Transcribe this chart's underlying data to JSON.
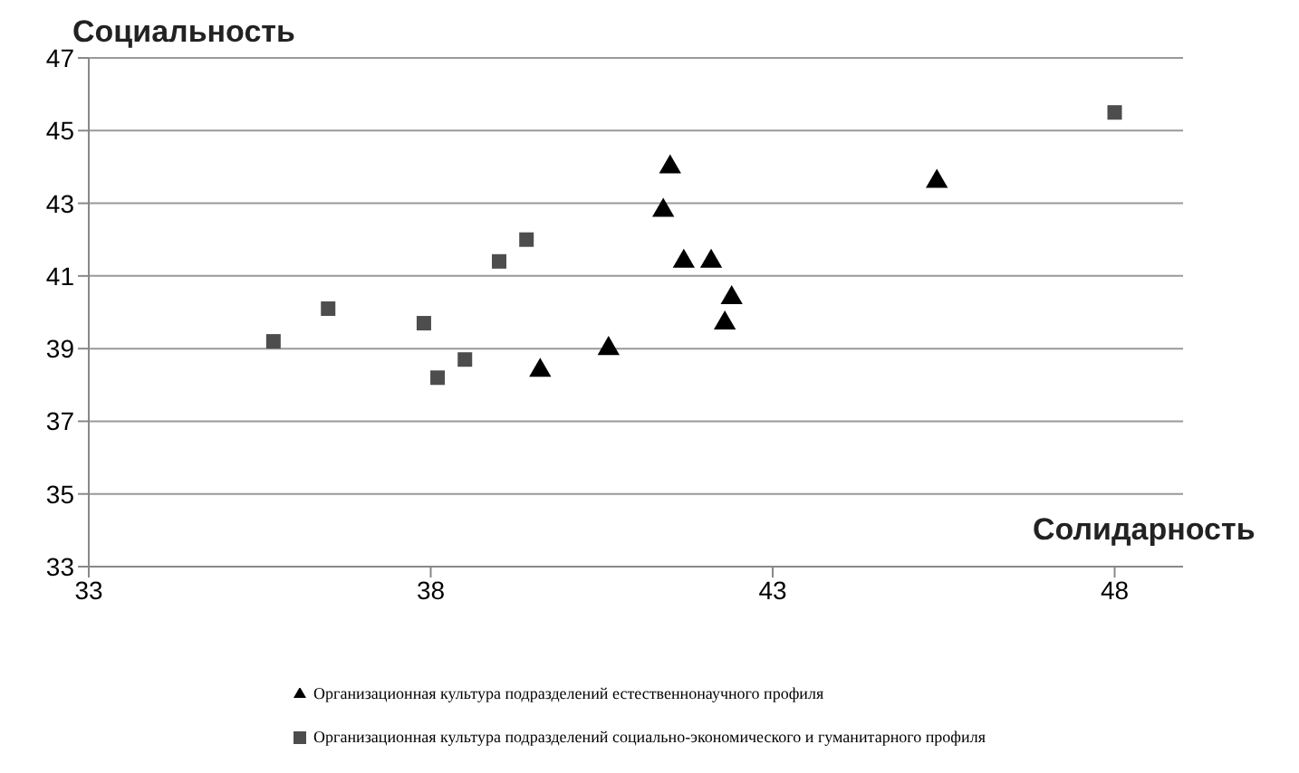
{
  "chart_data": {
    "type": "scatter",
    "xlabel": "Солидарность",
    "ylabel": "Социальность",
    "xlim": [
      33,
      49
    ],
    "xticks": [
      33,
      38,
      43,
      48
    ],
    "ylim": [
      33,
      47
    ],
    "yticks": [
      33,
      35,
      37,
      39,
      41,
      43,
      45,
      47
    ],
    "grid": "y",
    "legend": "bottom",
    "series": [
      {
        "name": "Организационная культура подразделений естественнонаучного профиля",
        "color": "#000000",
        "marker": "triangle",
        "x": [
          39.6,
          40.6,
          41.4,
          41.5,
          41.7,
          42.1,
          42.4,
          42.3,
          45.4
        ],
        "values": [
          38.4,
          39.0,
          42.8,
          44.0,
          41.4,
          41.4,
          40.4,
          39.7,
          43.6
        ]
      },
      {
        "name": "Организационная культура подразделений социально-экономического и гуманитарного профиля",
        "color": "#4d4d4d",
        "marker": "square",
        "x": [
          35.7,
          36.5,
          37.9,
          38.1,
          38.5,
          39.0,
          39.4,
          48.0
        ],
        "values": [
          39.2,
          40.1,
          39.7,
          38.2,
          38.7,
          41.4,
          42.0,
          45.5
        ]
      }
    ]
  }
}
